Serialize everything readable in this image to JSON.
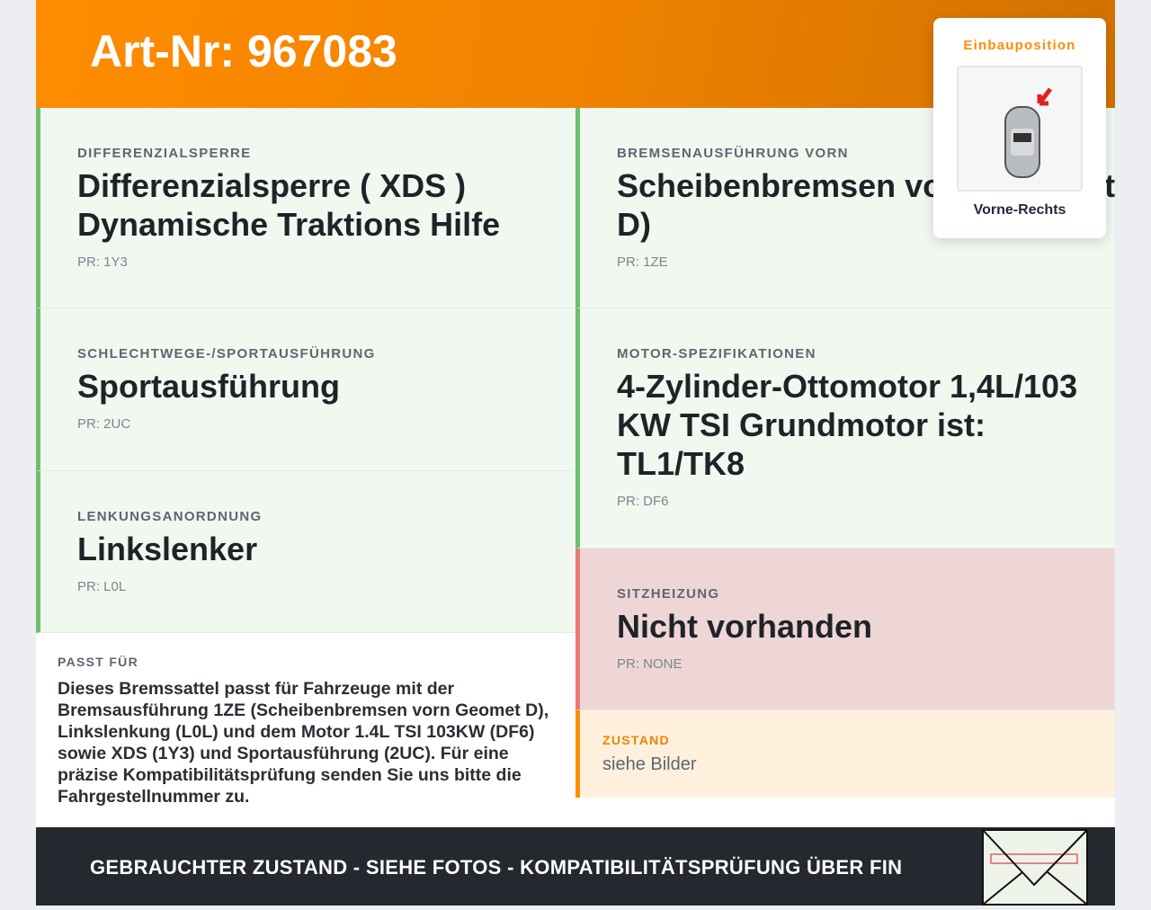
{
  "header": {
    "title": "Art-Nr: 967083"
  },
  "left": [
    {
      "label": "Differenzialsperre",
      "value": "Differenzialsperre ( XDS ) Dynamische Traktions Hilfe",
      "pr": "PR: 1Y3"
    },
    {
      "label": "Schlechtwege-/Sportausführung",
      "value": "Sportausführung",
      "pr": "PR: 2UC"
    },
    {
      "label": "Lenkungsanordnung",
      "value": "Linkslenker",
      "pr": "PR: L0L"
    }
  ],
  "right": [
    {
      "label": "Bremsenausführung vorn",
      "value": "Scheibenbremsen vorn (Geomet D)",
      "pr": "PR: 1ZE"
    },
    {
      "label": "Motor-Spezifikationen",
      "value": "4-Zylinder-Ottomotor 1,4L/103 KW TSI Grundmotor ist: TL1/TK8",
      "pr": "PR: DF6"
    },
    {
      "label": "Sitzheizung",
      "value": "Nicht vorhanden",
      "pr": "PR: NONE"
    }
  ],
  "zustand": {
    "label": "Zustand",
    "value": "siehe Bilder"
  },
  "passt": {
    "label": "Passt für",
    "text": "Dieses Bremssattel passt für Fahrzeuge mit der Bremsausführung 1ZE (Scheibenbremsen vorn Geomet D), Linkslenkung (L0L) und dem Motor 1.4L TSI 103KW (DF6) sowie XDS (1Y3) und Sportausführung (2UC). Für eine präzise Kompatibilitätsprüfung senden Sie uns bitte die Fahrgestellnummer zu."
  },
  "position": {
    "label": "Einbauposition",
    "caption": "Vorne-Rechts"
  },
  "footer": {
    "text": "GEBRAUCHTER ZUSTAND - SIEHE FOTOS - KOMPATIBILITÄTSPRÜFUNG ÜBER FIN"
  },
  "colors": {
    "accent": "#ff8c00",
    "match": "#6cc06b",
    "mismatch": "#ea7a7a",
    "footer": "#25282e"
  }
}
